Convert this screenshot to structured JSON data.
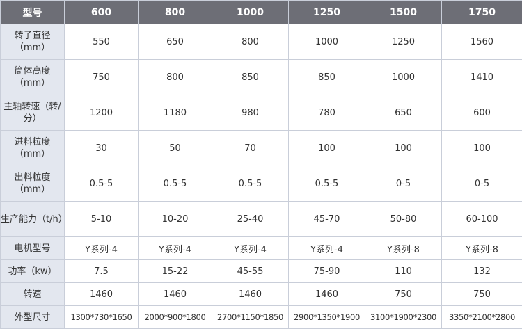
{
  "table": {
    "header_label": "型号",
    "models": [
      "600",
      "800",
      "1000",
      "1250",
      "1500",
      "1750"
    ],
    "rows": [
      {
        "label": "转子直径（mm）",
        "values": [
          "550",
          "650",
          "800",
          "1000",
          "1250",
          "1560"
        ]
      },
      {
        "label": "筒体高度（mm）",
        "values": [
          "750",
          "800",
          "850",
          "850",
          "1000",
          "1410"
        ]
      },
      {
        "label": "主轴转速（转/分）",
        "values": [
          "1200",
          "1180",
          "980",
          "780",
          "650",
          "600"
        ]
      },
      {
        "label": "进料粒度（mm）",
        "values": [
          "30",
          "50",
          "70",
          "100",
          "100",
          "100"
        ]
      },
      {
        "label": "出料粒度（mm）",
        "values": [
          "0.5-5",
          "0.5-5",
          "0.5-5",
          "0.5-5",
          "0-5",
          "0-5"
        ]
      },
      {
        "label": "生产能力（t/h）",
        "values": [
          "5-10",
          "10-20",
          "25-40",
          "45-70",
          "50-80",
          "60-100"
        ]
      },
      {
        "label": "电机型号",
        "values": [
          "Y系列-4",
          "Y系列-4",
          "Y系列-4",
          "Y系列-4",
          "Y系列-8",
          "Y系列-8"
        ]
      },
      {
        "label": "功率（kw）",
        "values": [
          "7.5",
          "15-22",
          "45-55",
          "75-90",
          "110",
          "132"
        ]
      },
      {
        "label": "转速",
        "values": [
          "1460",
          "1460",
          "1460",
          "1460",
          "750",
          "750"
        ]
      },
      {
        "label": "外型尺寸",
        "values": [
          "1300*730*1650",
          "2000*900*1800",
          "2700*1150*1850",
          "2900*1350*1900",
          "3100*1900*2300",
          "3350*2100*2800"
        ]
      }
    ]
  }
}
